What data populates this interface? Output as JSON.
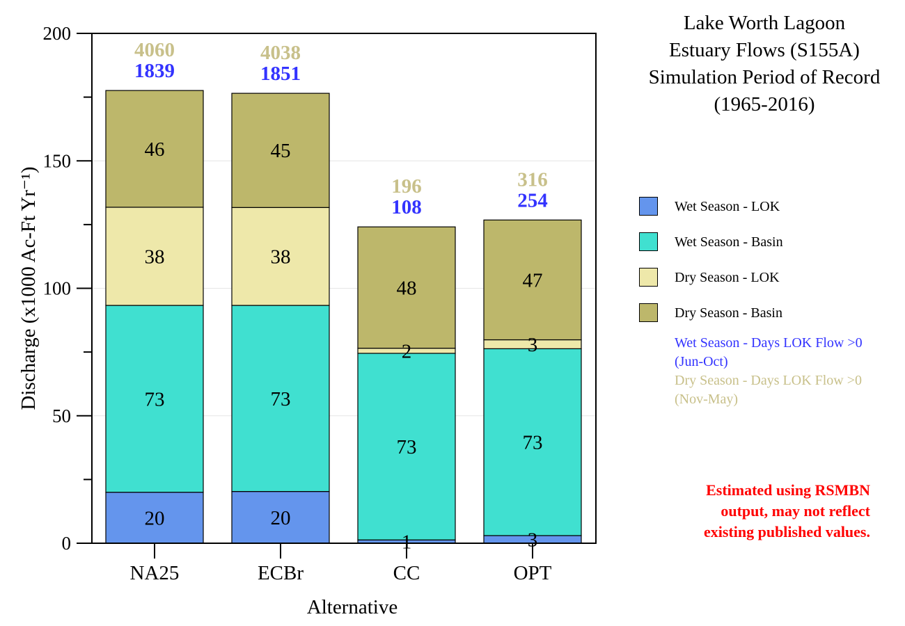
{
  "title_lines": [
    "Lake Worth Lagoon",
    "Estuary Flows (S155A)",
    "Simulation Period of Record",
    "(1965-2016)"
  ],
  "legend": [
    {
      "label": "Wet Season - LOK",
      "color": "#6495ED"
    },
    {
      "label": "Wet Season - Basin",
      "color": "#40E0D0"
    },
    {
      "label": "Dry Season - LOK",
      "color": "#EEE8AA"
    },
    {
      "label": "Dry Season - Basin",
      "color": "#BDB76B"
    }
  ],
  "legend_notes": {
    "wet": {
      "text": "Wet Season - Days LOK Flow >0",
      "sub": "(Jun-Oct)",
      "color": "#3333FF"
    },
    "dry": {
      "text": "Dry Season - Days LOK Flow >0",
      "sub": "(Nov-May)",
      "color": "#C8C08A"
    }
  },
  "disclaimer": {
    "lines": [
      "Estimated using RSMBN",
      "output, may not reflect",
      "existing published values."
    ],
    "color": "#FF0000"
  },
  "chart_data": {
    "type": "bar",
    "stacked": true,
    "categories": [
      "NA25",
      "ECBr",
      "CC",
      "OPT"
    ],
    "xlabel": "Alternative",
    "ylabel": "Discharge (x1000 Ac-Ft Yr⁻¹)",
    "ylim": [
      0,
      200
    ],
    "yticks": [
      0,
      50,
      100,
      150,
      200
    ],
    "grid": true,
    "legend_position": "right",
    "series": [
      {
        "name": "Wet Season - LOK",
        "color": "#6495ED",
        "values": [
          20,
          20.3,
          1.3,
          3
        ],
        "labels": [
          "20",
          "20",
          "1",
          "3"
        ]
      },
      {
        "name": "Wet Season - Basin",
        "color": "#40E0D0",
        "values": [
          73.3,
          73,
          73.2,
          73.3
        ],
        "labels": [
          "73",
          "73",
          "73",
          "73"
        ]
      },
      {
        "name": "Dry Season - LOK",
        "color": "#EEE8AA",
        "values": [
          38.5,
          38.4,
          2,
          3.5
        ],
        "labels": [
          "38",
          "38",
          "2",
          "3"
        ]
      },
      {
        "name": "Dry Season - Basin",
        "color": "#BDB76B",
        "values": [
          45.8,
          44.8,
          47.6,
          47
        ],
        "labels": [
          "46",
          "45",
          "48",
          "47"
        ]
      }
    ],
    "annotations": {
      "wet_days": {
        "values": [
          "1839",
          "1851",
          "108",
          "254"
        ],
        "color": "#3333FF"
      },
      "dry_days": {
        "values": [
          "4060",
          "4038",
          "196",
          "316"
        ],
        "color": "#C8C08A"
      }
    }
  }
}
